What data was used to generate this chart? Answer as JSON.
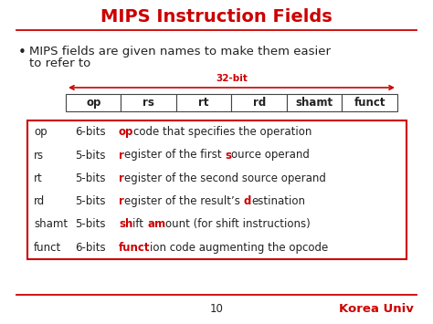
{
  "title": "MIPS Instruction Fields",
  "title_color": "#cc0000",
  "bullet_line1": "MIPS fields are given names to make them easier",
  "bullet_line2": "to refer to",
  "fields": [
    "op",
    "rs",
    "rt",
    "rd",
    "shamt",
    "funct"
  ],
  "bit_label": "32-bit",
  "red_color": "#cc0000",
  "dark_color": "#222222",
  "footer_page": "10",
  "footer_univ": "Korea Univ",
  "rows": [
    {
      "field": "op",
      "bits": "6-bits",
      "parts": [
        [
          "op",
          true
        ],
        [
          "code that specifies the operation",
          false
        ]
      ]
    },
    {
      "field": "rs",
      "bits": "5-bits",
      "parts": [
        [
          "r",
          true
        ],
        [
          "egister of the first ",
          false
        ],
        [
          "s",
          true
        ],
        [
          "ource operand",
          false
        ]
      ]
    },
    {
      "field": "rt",
      "bits": "5-bits",
      "parts": [
        [
          "r",
          true
        ],
        [
          "egister of the second source operand",
          false
        ]
      ]
    },
    {
      "field": "rd",
      "bits": "5-bits",
      "parts": [
        [
          "r",
          true
        ],
        [
          "egister of the result’s ",
          false
        ],
        [
          "d",
          true
        ],
        [
          "estination",
          false
        ]
      ]
    },
    {
      "field": "shamt",
      "bits": "5-bits",
      "parts": [
        [
          "sh",
          true
        ],
        [
          "ift ",
          false
        ],
        [
          "am",
          true
        ],
        [
          "ount (for shift instructions)",
          false
        ]
      ]
    },
    {
      "field": "funct",
      "bits": "6-bits",
      "parts": [
        [
          "funct",
          true
        ],
        [
          "ion code augmenting the opcode",
          false
        ]
      ]
    }
  ]
}
